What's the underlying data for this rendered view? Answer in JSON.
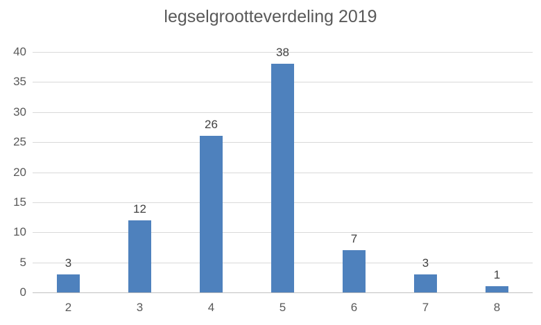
{
  "chart_data": {
    "type": "bar",
    "title": "legselgrootteverdeling 2019",
    "categories": [
      "2",
      "3",
      "4",
      "5",
      "6",
      "7",
      "8"
    ],
    "values": [
      3,
      12,
      26,
      38,
      7,
      3,
      1
    ],
    "xlabel": "",
    "ylabel": "",
    "ylim": [
      0,
      40
    ],
    "yticks": [
      0,
      5,
      10,
      15,
      20,
      25,
      30,
      35,
      40
    ],
    "grid": true,
    "legend_position": "none",
    "bar_color": "#4E81BD",
    "gridline_color": "#D9D9D9",
    "axis_line_color": "#BFBFBF",
    "title_color": "#595959",
    "tick_label_color": "#595959",
    "value_label_color": "#404040"
  }
}
